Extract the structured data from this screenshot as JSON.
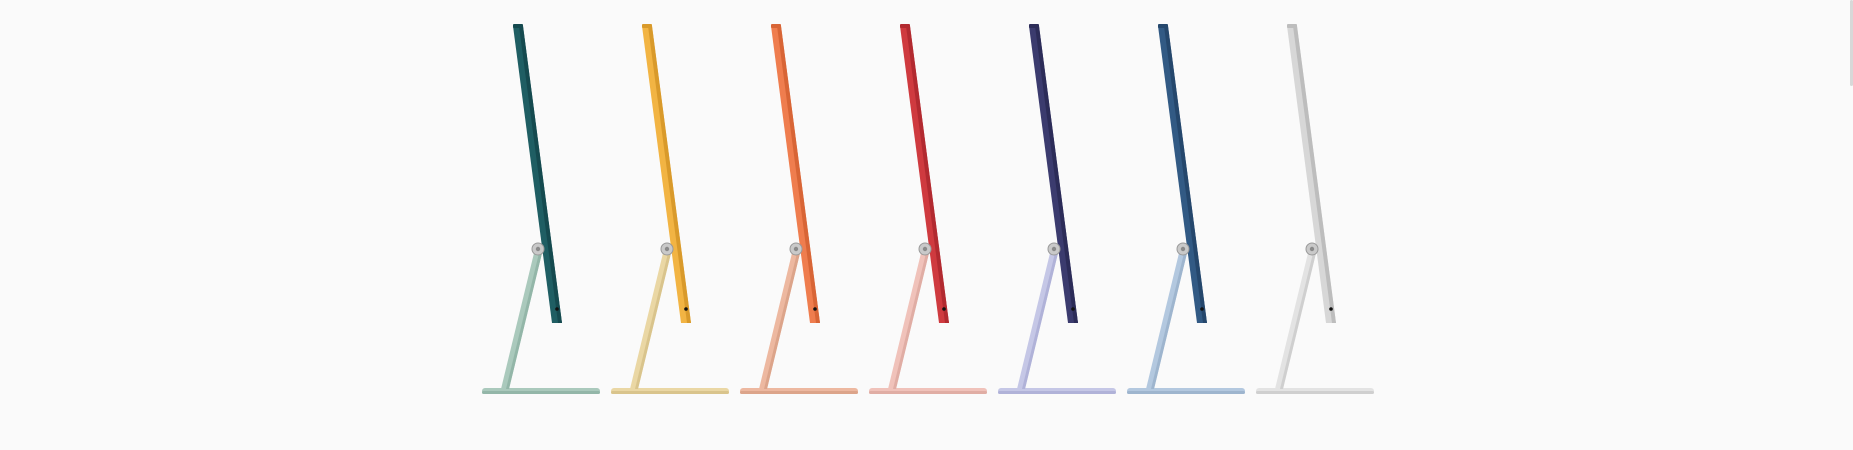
{
  "gallery": {
    "items": [
      {
        "color_name": "green",
        "display": "#1f5e63",
        "display_dark": "#154a4f",
        "stand": "#aac9bc",
        "stand_dark": "#93b6a8"
      },
      {
        "color_name": "yellow",
        "display": "#f2b443",
        "display_dark": "#d99a2b",
        "stand": "#ead7a4",
        "stand_dark": "#d9c48c"
      },
      {
        "color_name": "orange",
        "display": "#ef7d4e",
        "display_dark": "#d86536",
        "stand": "#edb8a0",
        "stand_dark": "#dca48a"
      },
      {
        "color_name": "red",
        "display": "#cf3a3f",
        "display_dark": "#b22a30",
        "stand": "#f0c2ba",
        "stand_dark": "#e0ada4"
      },
      {
        "color_name": "purple",
        "display": "#3b3b6e",
        "display_dark": "#2c2c58",
        "stand": "#c5c7e6",
        "stand_dark": "#b0b2d8"
      },
      {
        "color_name": "blue",
        "display": "#325a84",
        "display_dark": "#25476c",
        "stand": "#b3c8df",
        "stand_dark": "#9eb5ce"
      },
      {
        "color_name": "silver",
        "display": "#d7d7d7",
        "display_dark": "#bdbdbd",
        "stand": "#e3e3e3",
        "stand_dark": "#cfcfcf"
      }
    ]
  }
}
